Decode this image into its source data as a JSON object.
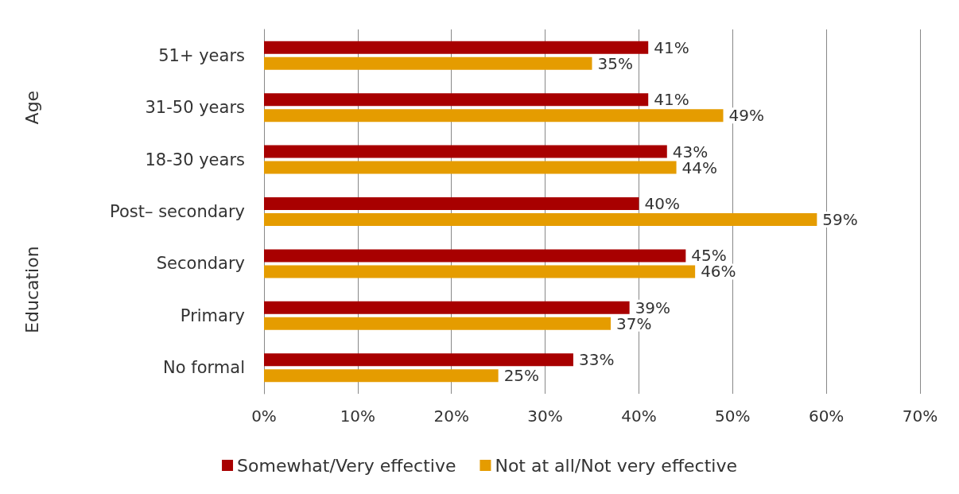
{
  "chart_data": {
    "type": "bar",
    "orientation": "horizontal",
    "categories": [
      "51+ years",
      "31-50 years",
      "18-30 years",
      "Post– secondary",
      "Secondary",
      "Primary",
      "No formal"
    ],
    "series": [
      {
        "name": "Somewhat/Very effective",
        "color": "#a80000",
        "values": [
          41,
          41,
          43,
          40,
          45,
          39,
          33
        ],
        "value_labels": [
          "41%",
          "41%",
          "43%",
          "40%",
          "45%",
          "39%",
          "33%"
        ]
      },
      {
        "name": "Not at all/Not very effective",
        "color": "#e59c00",
        "values": [
          35,
          49,
          44,
          59,
          46,
          37,
          25
        ],
        "value_labels": [
          "35%",
          "49%",
          "44%",
          "59%",
          "46%",
          "37%",
          "25%"
        ]
      }
    ],
    "xlim": [
      0,
      70
    ],
    "xticks": [
      {
        "value": 0,
        "label": "0%"
      },
      {
        "value": 10,
        "label": "10%"
      },
      {
        "value": 20,
        "label": "20%"
      },
      {
        "value": 30,
        "label": "30%"
      },
      {
        "value": 40,
        "label": "40%"
      },
      {
        "value": 50,
        "label": "50%"
      },
      {
        "value": 60,
        "label": "60%"
      },
      {
        "value": 70,
        "label": "70%"
      }
    ],
    "annotations": [
      "Age",
      "Education"
    ],
    "grid": "x",
    "legend": "bottom"
  }
}
